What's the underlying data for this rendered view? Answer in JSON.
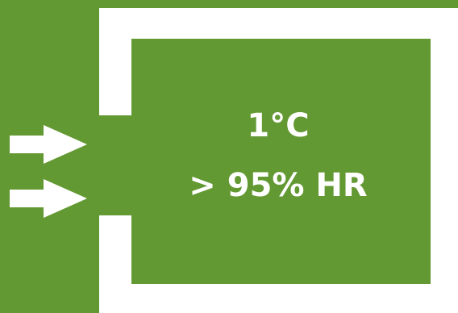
{
  "chamber": {
    "temperature": "1°C",
    "humidity": "> 95% HR"
  },
  "colors": {
    "fill": "#639932",
    "wall": "#FFFFFF",
    "text": "#FFFFFF"
  },
  "icons": [
    "right-arrow-icon",
    "right-arrow-icon"
  ]
}
